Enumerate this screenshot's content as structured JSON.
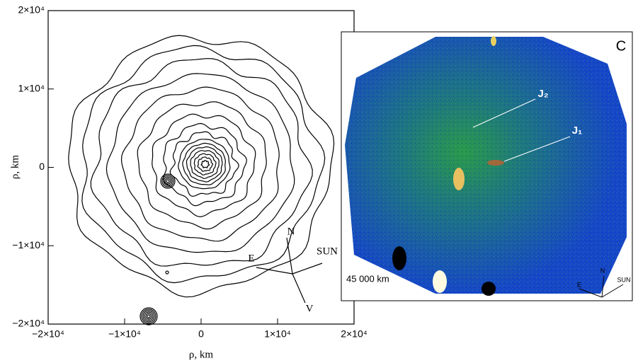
{
  "chart_data": {
    "type": "contour",
    "xlabel": "ρ, km",
    "ylabel": "ρ, km",
    "xlim": [
      -20000,
      20000
    ],
    "ylim": [
      -20000,
      20000
    ],
    "xticks": [
      {
        "value": -20000,
        "label": "−2×10⁴"
      },
      {
        "value": -10000,
        "label": "−1×10⁴"
      },
      0,
      {
        "value": 10000,
        "label": "1×10⁴"
      },
      {
        "value": 20000,
        "label": "2×10⁴"
      }
    ],
    "yticks": [
      {
        "value": -20000,
        "label": "−2×10⁴"
      },
      {
        "value": -10000,
        "label": "−1×10⁴"
      },
      0,
      {
        "value": 10000,
        "label": "1×10⁴"
      },
      {
        "value": 20000,
        "label": "2×10⁴"
      }
    ],
    "compass": {
      "north": "N",
      "east": "E",
      "sun": "SUN",
      "velocity": "V"
    }
  },
  "image_panel": {
    "panel_label": "C",
    "jet_2": "J₂",
    "jet_1": "J₁",
    "scale_bar": "45 000 km",
    "compass": {
      "north": "N",
      "east": "E",
      "sun": "SUN"
    }
  }
}
